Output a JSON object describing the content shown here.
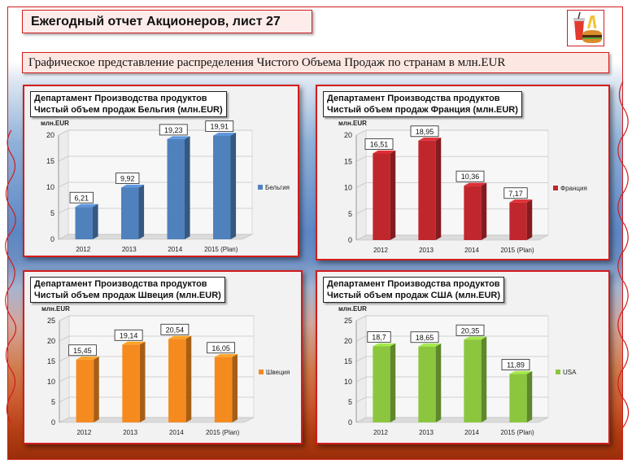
{
  "page": {
    "title": "Ежегодный отчет Акционеров,  лист 27",
    "subtitle": "Графическое представление распределения Чистого Объема Продаж по странам в млн.EUR",
    "frame_color": "#d21d1d",
    "logo_icon": "fast-food-icon"
  },
  "chart_data": [
    {
      "type": "bar",
      "heading_line1": "Департамент Производства продуктов",
      "heading_line2": "Чистый  объем продаж Бельгия  (млн.EUR)",
      "ylabel": "млн.EUR",
      "categories": [
        "2012",
        "2013",
        "2014",
        "2015 (Plan)"
      ],
      "series": [
        {
          "name": "Бельгия",
          "values": [
            6.21,
            9.92,
            19.23,
            19.91
          ],
          "labels": [
            "6,21",
            "9,92",
            "19,23",
            "19,91"
          ],
          "color": "#4f81bd"
        }
      ],
      "ylim": [
        0,
        20
      ],
      "ticks": [
        "0",
        "5",
        "10",
        "15",
        "20"
      ],
      "grid": true,
      "legend": "right"
    },
    {
      "type": "bar",
      "heading_line1": "Департамент Производства продуктов",
      "heading_line2": "Чистый  объем продаж Франция  (млн.EUR)",
      "ylabel": "млн.EUR",
      "categories": [
        "2012",
        "2013",
        "2014",
        "2015 (Plan)"
      ],
      "series": [
        {
          "name": "Франция",
          "values": [
            16.51,
            18.95,
            10.36,
            7.17
          ],
          "labels": [
            "16,51",
            "18,95",
            "10,36",
            "7,17"
          ],
          "color": "#c0272d"
        }
      ],
      "ylim": [
        0,
        20
      ],
      "ticks": [
        "0",
        "5",
        "10",
        "15",
        "20"
      ],
      "grid": true,
      "legend": "right"
    },
    {
      "type": "bar",
      "heading_line1": "Департамент Производства продуктов",
      "heading_line2": "Чистый  объем продаж Швеция  (млн.EUR)",
      "ylabel": "млн.EUR",
      "categories": [
        "2012",
        "2013",
        "2014",
        "2015 (Plan)"
      ],
      "series": [
        {
          "name": "Швеция",
          "values": [
            15.45,
            19.14,
            20.54,
            16.05
          ],
          "labels": [
            "15,45",
            "19,14",
            "20,54",
            "16,05"
          ],
          "color": "#f58a1f"
        }
      ],
      "ylim": [
        0,
        25
      ],
      "ticks": [
        "0",
        "5",
        "10",
        "15",
        "20",
        "25"
      ],
      "grid": true,
      "legend": "right"
    },
    {
      "type": "bar",
      "heading_line1": "Департамент Производства продуктов",
      "heading_line2": "Чистый  объем продаж США  (млн.EUR)",
      "ylabel": "млн.EUR",
      "categories": [
        "2012",
        "2013",
        "2014",
        "2015 (Plan)"
      ],
      "series": [
        {
          "name": "USA",
          "values": [
            18.7,
            18.65,
            20.35,
            11.89
          ],
          "labels": [
            "18,7",
            "18,65",
            "20,35",
            "11,89"
          ],
          "color": "#8cc63f"
        }
      ],
      "ylim": [
        0,
        25
      ],
      "ticks": [
        "0",
        "5",
        "10",
        "15",
        "20",
        "25"
      ],
      "grid": true,
      "legend": "right"
    }
  ]
}
